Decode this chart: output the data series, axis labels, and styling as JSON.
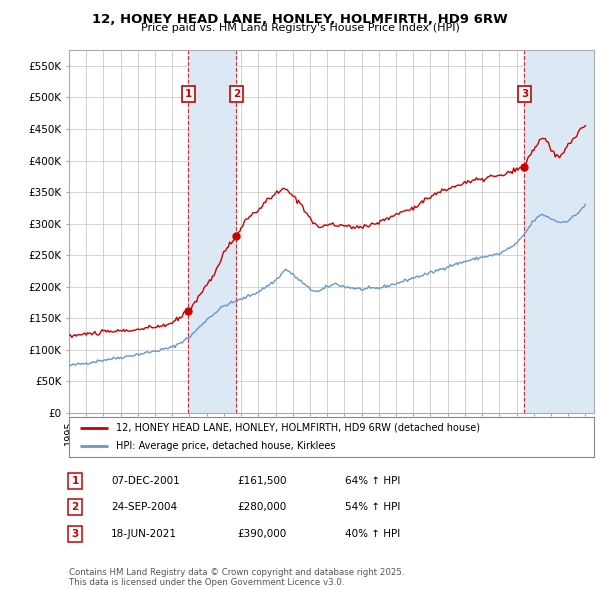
{
  "title": "12, HONEY HEAD LANE, HONLEY, HOLMFIRTH, HD9 6RW",
  "subtitle": "Price paid vs. HM Land Registry's House Price Index (HPI)",
  "ylim": [
    0,
    575000
  ],
  "yticks": [
    0,
    50000,
    100000,
    150000,
    200000,
    250000,
    300000,
    350000,
    400000,
    450000,
    500000,
    550000
  ],
  "ytick_labels": [
    "£0",
    "£50K",
    "£100K",
    "£150K",
    "£200K",
    "£250K",
    "£300K",
    "£350K",
    "£400K",
    "£450K",
    "£500K",
    "£550K"
  ],
  "xlim_start": 1995.0,
  "xlim_end": 2025.5,
  "transactions": [
    {
      "num": 1,
      "date_label": "07-DEC-2001",
      "date_x": 2001.92,
      "price": 161500,
      "pct": "64%"
    },
    {
      "num": 2,
      "date_label": "24-SEP-2004",
      "date_x": 2004.73,
      "price": 280000,
      "pct": "54%"
    },
    {
      "num": 3,
      "date_label": "18-JUN-2021",
      "date_x": 2021.46,
      "price": 390000,
      "pct": "40%"
    }
  ],
  "legend_red_label": "12, HONEY HEAD LANE, HONLEY, HOLMFIRTH, HD9 6RW (detached house)",
  "legend_blue_label": "HPI: Average price, detached house, Kirklees",
  "footer": "Contains HM Land Registry data © Crown copyright and database right 2025.\nThis data is licensed under the Open Government Licence v3.0.",
  "background_color": "#ffffff",
  "plot_bg_color": "#ffffff",
  "grid_color": "#cccccc",
  "red_color": "#cc0000",
  "blue_color": "#6699cc",
  "shade_color": "#dde8f5",
  "table_rows": [
    [
      "1",
      "07-DEC-2001",
      "£161,500",
      "64% ↑ HPI"
    ],
    [
      "2",
      "24-SEP-2004",
      "£280,000",
      "54% ↑ HPI"
    ],
    [
      "3",
      "18-JUN-2021",
      "£390,000",
      "40% ↑ HPI"
    ]
  ],
  "hpi_key_points": [
    [
      1995.0,
      75000
    ],
    [
      1996.0,
      79000
    ],
    [
      1997.0,
      84000
    ],
    [
      1998.0,
      88000
    ],
    [
      1999.0,
      93000
    ],
    [
      2000.0,
      98000
    ],
    [
      2001.0,
      104000
    ],
    [
      2002.0,
      120000
    ],
    [
      2003.0,
      148000
    ],
    [
      2004.0,
      170000
    ],
    [
      2005.0,
      180000
    ],
    [
      2006.0,
      192000
    ],
    [
      2007.0,
      210000
    ],
    [
      2007.6,
      228000
    ],
    [
      2008.5,
      208000
    ],
    [
      2009.0,
      196000
    ],
    [
      2009.5,
      192000
    ],
    [
      2010.0,
      200000
    ],
    [
      2010.5,
      205000
    ],
    [
      2011.0,
      200000
    ],
    [
      2012.0,
      196000
    ],
    [
      2013.0,
      198000
    ],
    [
      2014.0,
      205000
    ],
    [
      2015.0,
      214000
    ],
    [
      2016.0,
      222000
    ],
    [
      2017.0,
      232000
    ],
    [
      2018.0,
      240000
    ],
    [
      2019.0,
      247000
    ],
    [
      2020.0,
      252000
    ],
    [
      2021.0,
      268000
    ],
    [
      2021.5,
      285000
    ],
    [
      2022.0,
      305000
    ],
    [
      2022.5,
      315000
    ],
    [
      2023.0,
      308000
    ],
    [
      2023.5,
      302000
    ],
    [
      2024.0,
      305000
    ],
    [
      2024.5,
      315000
    ],
    [
      2025.0,
      330000
    ]
  ],
  "red_key_points": [
    [
      1995.0,
      122000
    ],
    [
      1996.0,
      125000
    ],
    [
      1997.0,
      128000
    ],
    [
      1998.0,
      130000
    ],
    [
      1999.0,
      132000
    ],
    [
      2000.0,
      136000
    ],
    [
      2001.0,
      142000
    ],
    [
      2001.92,
      161500
    ],
    [
      2002.3,
      175000
    ],
    [
      2002.8,
      195000
    ],
    [
      2003.3,
      215000
    ],
    [
      2003.8,
      240000
    ],
    [
      2004.0,
      255000
    ],
    [
      2004.73,
      280000
    ],
    [
      2005.0,
      295000
    ],
    [
      2005.5,
      310000
    ],
    [
      2006.0,
      322000
    ],
    [
      2006.5,
      336000
    ],
    [
      2007.0,
      348000
    ],
    [
      2007.5,
      355000
    ],
    [
      2008.0,
      345000
    ],
    [
      2008.5,
      330000
    ],
    [
      2009.0,
      310000
    ],
    [
      2009.3,
      298000
    ],
    [
      2009.7,
      293000
    ],
    [
      2010.0,
      300000
    ],
    [
      2010.5,
      296000
    ],
    [
      2011.0,
      298000
    ],
    [
      2011.5,
      293000
    ],
    [
      2012.0,
      296000
    ],
    [
      2012.5,
      298000
    ],
    [
      2013.0,
      302000
    ],
    [
      2013.5,
      308000
    ],
    [
      2014.0,
      315000
    ],
    [
      2014.5,
      320000
    ],
    [
      2015.0,
      325000
    ],
    [
      2015.5,
      335000
    ],
    [
      2016.0,
      342000
    ],
    [
      2016.5,
      350000
    ],
    [
      2017.0,
      355000
    ],
    [
      2017.5,
      360000
    ],
    [
      2018.0,
      365000
    ],
    [
      2018.5,
      368000
    ],
    [
      2019.0,
      370000
    ],
    [
      2019.5,
      375000
    ],
    [
      2020.0,
      375000
    ],
    [
      2020.5,
      380000
    ],
    [
      2021.0,
      385000
    ],
    [
      2021.46,
      390000
    ],
    [
      2021.7,
      405000
    ],
    [
      2022.0,
      418000
    ],
    [
      2022.3,
      430000
    ],
    [
      2022.5,
      438000
    ],
    [
      2022.8,
      430000
    ],
    [
      2023.0,
      415000
    ],
    [
      2023.3,
      408000
    ],
    [
      2023.5,
      405000
    ],
    [
      2023.8,
      415000
    ],
    [
      2024.0,
      425000
    ],
    [
      2024.3,
      435000
    ],
    [
      2024.7,
      448000
    ],
    [
      2025.0,
      455000
    ]
  ]
}
